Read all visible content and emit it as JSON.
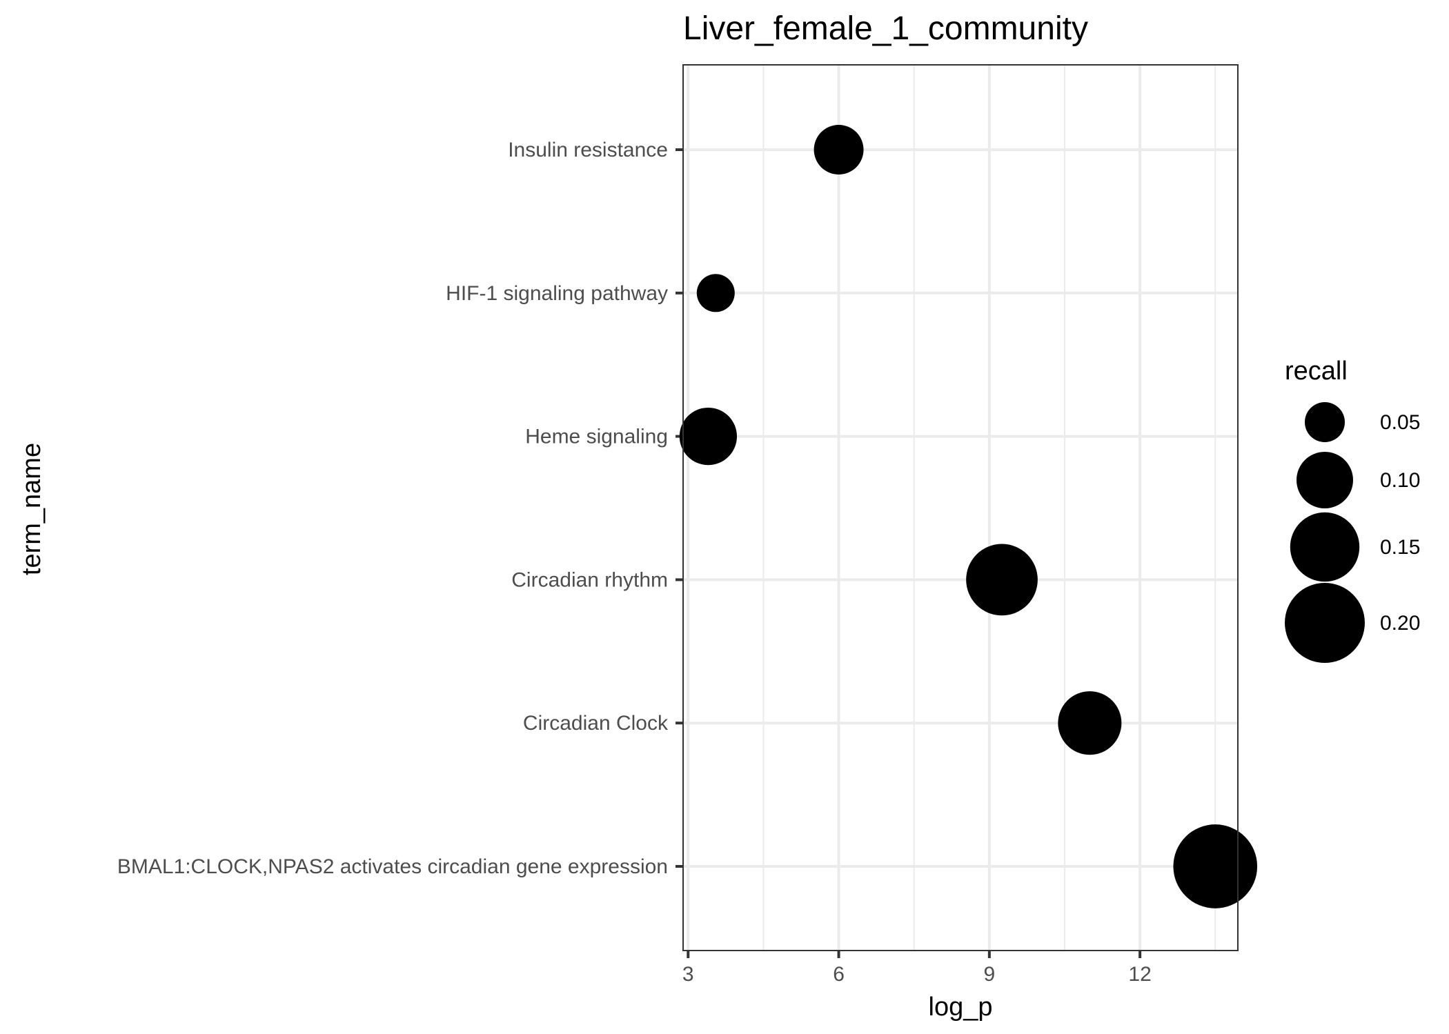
{
  "chart_data": {
    "type": "scatter",
    "title": "Liver_female_1_community",
    "xlabel": "log_p",
    "ylabel": "term_name",
    "xlim": [
      2.9,
      13.95
    ],
    "x_ticks": [
      3,
      6,
      9,
      12
    ],
    "x_tick_labels": [
      "3",
      "6",
      "9",
      "12"
    ],
    "categories": [
      "Insulin resistance",
      "HIF-1 signaling pathway",
      "Heme signaling",
      "Circadian rhythm",
      "Circadian Clock",
      "BMAL1:CLOCK,NPAS2 activates circadian gene expression"
    ],
    "points": [
      {
        "term": "Insulin resistance",
        "log_p": 6.0,
        "recall": 0.077
      },
      {
        "term": "HIF-1 signaling pathway",
        "log_p": 3.55,
        "recall": 0.045
      },
      {
        "term": "Heme signaling",
        "log_p": 3.4,
        "recall": 0.103
      },
      {
        "term": "Circadian rhythm",
        "log_p": 9.25,
        "recall": 0.16
      },
      {
        "term": "Circadian Clock",
        "log_p": 11.0,
        "recall": 0.126
      },
      {
        "term": "BMAL1:CLOCK,NPAS2 activates circadian gene expression",
        "log_p": 13.5,
        "recall": 0.22
      }
    ],
    "size_legend": {
      "title": "recall",
      "values": [
        0.05,
        0.1,
        0.15,
        0.2
      ],
      "labels": [
        "0.05",
        "0.10",
        "0.15",
        "0.20"
      ],
      "placement": "right"
    },
    "point_color": "#000000",
    "grid": true
  }
}
